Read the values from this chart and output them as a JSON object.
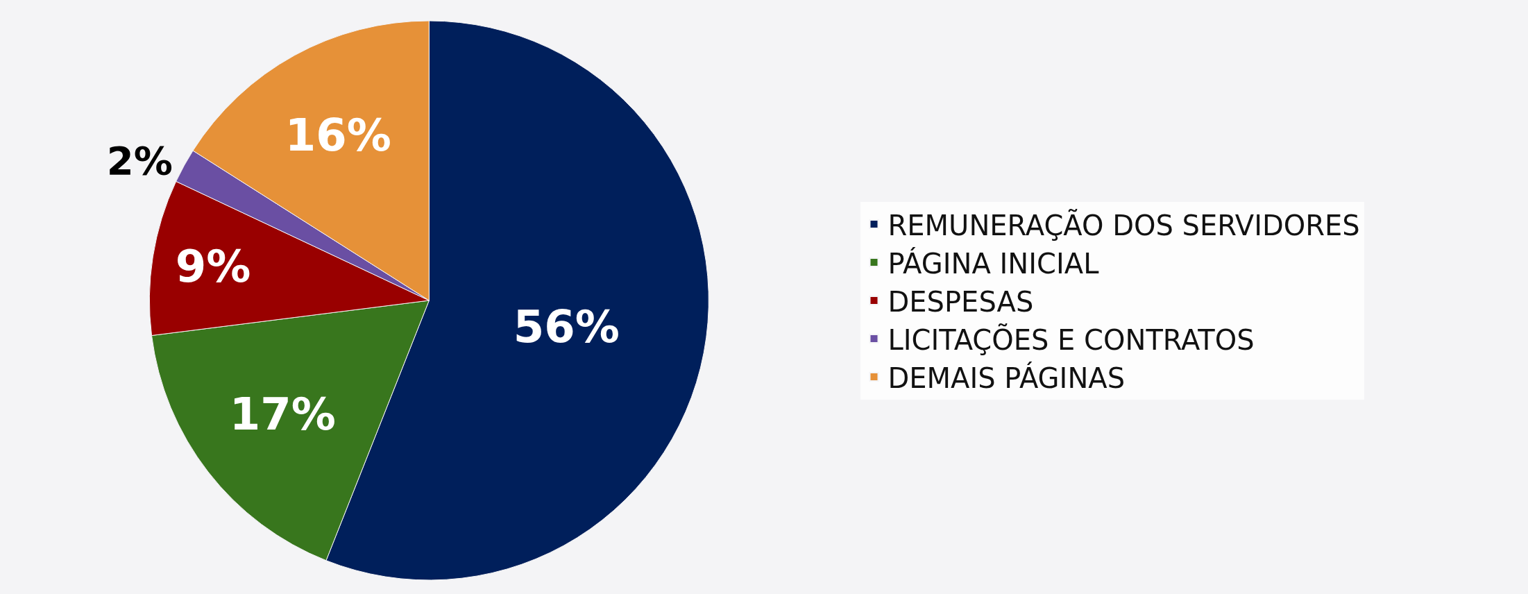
{
  "chart_data": {
    "type": "pie",
    "categories": [
      "REMUNERAÇÃO DOS SERVIDORES",
      "PÁGINA INICIAL",
      "DESPESAS",
      "LICITAÇÕES E CONTRATOS",
      "DEMAIS PÁGINAS"
    ],
    "values": [
      56,
      17,
      9,
      2,
      16
    ],
    "colors": [
      "#001f5b",
      "#38761d",
      "#990000",
      "#6a4fa3",
      "#e69138"
    ],
    "value_labels": [
      "56%",
      "17%",
      "9%",
      "2%",
      "16%"
    ],
    "legend": "right"
  }
}
